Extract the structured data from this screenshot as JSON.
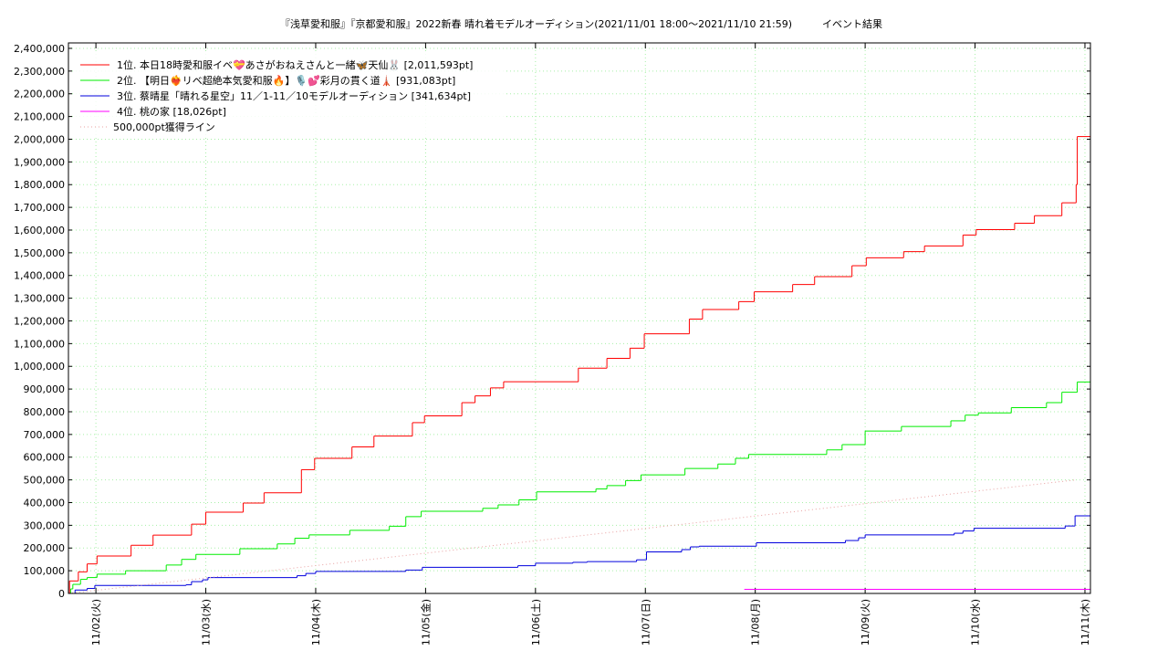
{
  "chart_data": {
    "type": "step-line",
    "title": "『浅草愛和服』『京都愛和服』2022新春 晴れ着モデルオーディション(2021/11/01 18:00～2021/11/10 21:59)　　　イベント結果",
    "xlim": [
      1.75,
      11.05
    ],
    "ylim": [
      0,
      2424000
    ],
    "grid": true,
    "legend": "top-left",
    "xticks": [
      {
        "value": 2,
        "label": "11/02(火)"
      },
      {
        "value": 3,
        "label": "11/03(水)"
      },
      {
        "value": 4,
        "label": "11/04(木)"
      },
      {
        "value": 5,
        "label": "11/05(金)"
      },
      {
        "value": 6,
        "label": "11/06(土)"
      },
      {
        "value": 7,
        "label": "11/07(日)"
      },
      {
        "value": 8,
        "label": "11/08(月)"
      },
      {
        "value": 9,
        "label": "11/09(火)"
      },
      {
        "value": 10,
        "label": "11/10(水)"
      },
      {
        "value": 11,
        "label": "11/11(木)"
      }
    ],
    "yticks": [
      0,
      {
        "value": 100000,
        "label": "100,000"
      },
      {
        "value": 200000,
        "label": "200,000"
      },
      {
        "value": 300000,
        "label": "300,000"
      },
      {
        "value": 400000,
        "label": "400,000"
      },
      {
        "value": 500000,
        "label": "500,000"
      },
      {
        "value": 600000,
        "label": "600,000"
      },
      {
        "value": 700000,
        "label": "700,000"
      },
      {
        "value": 800000,
        "label": "800,000"
      },
      {
        "value": 900000,
        "label": "900,000"
      },
      {
        "value": 1000000,
        "label": "1,000,000"
      },
      {
        "value": 1100000,
        "label": "1,100,000"
      },
      {
        "value": 1200000,
        "label": "1,200,000"
      },
      {
        "value": 1300000,
        "label": "1,300,000"
      },
      {
        "value": 1400000,
        "label": "1,400,000"
      },
      {
        "value": 1500000,
        "label": "1,500,000"
      },
      {
        "value": 1600000,
        "label": "1,600,000"
      },
      {
        "value": 1700000,
        "label": "1,700,000"
      },
      {
        "value": 1800000,
        "label": "1,800,000"
      },
      {
        "value": 1900000,
        "label": "1,900,000"
      },
      {
        "value": 2000000,
        "label": "2,000,000"
      },
      {
        "value": 2100000,
        "label": "2,100,000"
      },
      {
        "value": 2200000,
        "label": "2,200,000"
      },
      {
        "value": 2300000,
        "label": "2,300,000"
      },
      {
        "value": 2400000,
        "label": "2,400,000"
      }
    ],
    "series": [
      {
        "name": "1位. 本日18時愛和服イベ💝あさがおねえさんと一緒🦋天仙🐰 [2,011,593pt]",
        "color": "#ff0000",
        "line_style": "step",
        "x": [
          1.75,
          1.76,
          1.84,
          1.92,
          2.01,
          2.32,
          2.52,
          2.87,
          3.0,
          3.34,
          3.53,
          3.87,
          3.99,
          4.33,
          4.53,
          4.88,
          4.99,
          5.33,
          5.45,
          5.59,
          5.71,
          6.39,
          6.65,
          6.86,
          6.99,
          7.4,
          7.52,
          7.85,
          7.99,
          8.34,
          8.54,
          8.88,
          9.01,
          9.35,
          9.54,
          9.89,
          10.01,
          10.36,
          10.54,
          10.79,
          10.92,
          10.93
        ],
        "values": [
          0,
          55000,
          95000,
          130000,
          165000,
          212000,
          257000,
          305000,
          358000,
          398000,
          443000,
          545000,
          595000,
          645000,
          693000,
          752000,
          782000,
          840000,
          870000,
          905000,
          932000,
          992000,
          1035000,
          1080000,
          1143000,
          1208000,
          1250000,
          1285000,
          1328000,
          1360000,
          1395000,
          1443000,
          1478000,
          1505000,
          1530000,
          1578000,
          1602000,
          1630000,
          1663000,
          1720000,
          1800000,
          2011593
        ]
      },
      {
        "name": "2位. 【明日❤️‍🔥リベ超絶本気愛和服🔥】🎙️💕彩月の貫く道🗼 [931,083pt]",
        "color": "#00ee00",
        "line_style": "step",
        "x": [
          1.75,
          1.77,
          1.79,
          1.86,
          1.92,
          2.01,
          2.27,
          2.64,
          2.78,
          2.91,
          3.31,
          3.65,
          3.81,
          3.94,
          4.31,
          4.67,
          4.82,
          4.96,
          5.52,
          5.66,
          5.85,
          6.01,
          6.55,
          6.65,
          6.82,
          6.96,
          7.36,
          7.66,
          7.82,
          7.94,
          8.65,
          8.79,
          9.0,
          9.33,
          9.78,
          9.91,
          10.03,
          10.33,
          10.65,
          10.79,
          10.93
        ],
        "values": [
          0,
          20000,
          40000,
          62000,
          70000,
          85000,
          100000,
          125000,
          150000,
          172000,
          197000,
          218000,
          243000,
          258000,
          278000,
          296000,
          338000,
          362000,
          375000,
          390000,
          412000,
          447000,
          460000,
          475000,
          497000,
          522000,
          550000,
          570000,
          595000,
          612000,
          632000,
          655000,
          715000,
          735000,
          760000,
          785000,
          795000,
          818000,
          840000,
          886000,
          931083
        ]
      },
      {
        "name": "3位. 蔡晴星「晴れる星空」11／1-11／10モデルオーディション [341,634pt]",
        "color": "#0000dd",
        "line_style": "step",
        "x": [
          1.75,
          1.81,
          1.92,
          1.99,
          2.82,
          2.87,
          2.97,
          3.02,
          3.83,
          3.91,
          4.0,
          4.82,
          4.97,
          5.84,
          6.0,
          6.34,
          6.47,
          6.92,
          7.01,
          7.33,
          7.41,
          7.49,
          8.01,
          8.82,
          8.94,
          9.0,
          9.81,
          9.89,
          9.99,
          10.82,
          10.91
        ],
        "values": [
          0,
          15000,
          22000,
          35000,
          38000,
          52000,
          60000,
          70000,
          78000,
          88000,
          97000,
          103000,
          115000,
          122000,
          133000,
          137000,
          140000,
          148000,
          183000,
          193000,
          205000,
          208000,
          223000,
          233000,
          245000,
          258000,
          265000,
          275000,
          287000,
          297000,
          341634
        ]
      },
      {
        "name": "4位. 桃の家 [18,026pt]",
        "color": "#ff00ff",
        "line_style": "step",
        "x": [
          7.9
        ],
        "values": [
          18026
        ]
      },
      {
        "name": "500,000pt獲得ライン",
        "color": "#e8a0a0",
        "line_style": "dotted",
        "x": [
          1.75,
          10.92
        ],
        "values": [
          0,
          500000
        ]
      }
    ]
  }
}
